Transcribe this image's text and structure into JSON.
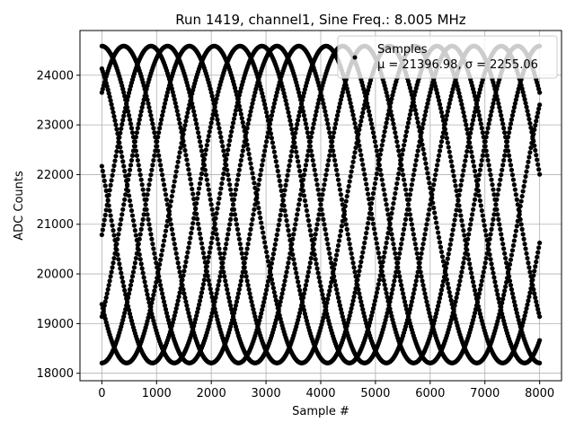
{
  "chart_data": {
    "type": "scatter",
    "title": "Run 1419, channel1, Sine Freq.: 8.005 MHz",
    "xlabel": "Sample #",
    "ylabel": "ADC Counts",
    "xlim": [
      -400,
      8400
    ],
    "ylim": [
      17850,
      24900
    ],
    "xticks": [
      0,
      1000,
      2000,
      3000,
      4000,
      5000,
      6000,
      7000,
      8000
    ],
    "yticks": [
      18000,
      19000,
      20000,
      21000,
      22000,
      23000,
      24000
    ],
    "grid": true,
    "legend": {
      "placement": "top-right",
      "entries": [
        {
          "label": "Samples",
          "stat_line": "μ = 21396.98, σ = 2255.06"
        }
      ]
    },
    "series": [
      {
        "name": "Samples",
        "color": "#000000",
        "marker": "circle",
        "model": "sinusoid",
        "mean": 21396.98,
        "amplitude": 3190,
        "period_samples": 3200,
        "phases_deg": [
          -11,
          121,
          45,
          166,
          90,
          -141,
          -45,
          -90
        ],
        "x_range": [
          0,
          8000
        ],
        "x_step": 16
      }
    ]
  }
}
